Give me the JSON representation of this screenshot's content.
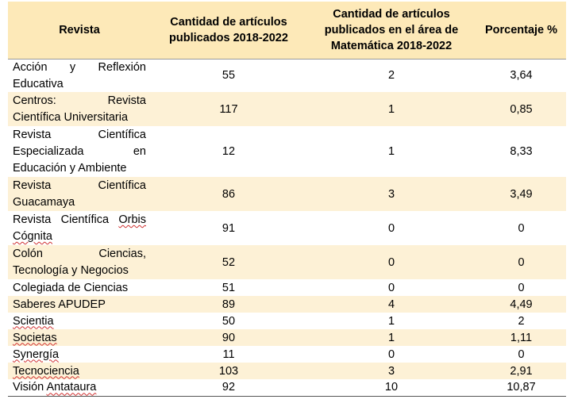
{
  "headers": {
    "revista": "Revista",
    "cantidad": "Cantidad de artículos publicados 2018-2022",
    "matematica": "Cantidad de artículos publicados en el área de Matemática 2018-2022",
    "porcentaje": "Porcentaje %"
  },
  "rows": [
    {
      "name": "Acción y Reflexión Educativa",
      "total": "55",
      "math": "2",
      "pct": "3,64"
    },
    {
      "name": "Centros: Revista Científica Universitaria",
      "total": "117",
      "math": "1",
      "pct": "0,85"
    },
    {
      "name": "Revista Científica Especializada en Educación y Ambiente",
      "total": "12",
      "math": "1",
      "pct": "8,33"
    },
    {
      "name": "Revista Científica Guacamaya",
      "total": "86",
      "math": "3",
      "pct": "3,49"
    },
    {
      "name": "Revista Científica Orbis Cógnita",
      "total": "91",
      "math": "0",
      "pct": "0"
    },
    {
      "name": "Colón Ciencias, Tecnología y Negocios",
      "total": "52",
      "math": "0",
      "pct": "0"
    },
    {
      "name": "Colegiada de Ciencias",
      "total": "51",
      "math": "0",
      "pct": "0"
    },
    {
      "name": "Saberes APUDEP",
      "total": "89",
      "math": "4",
      "pct": "4,49"
    },
    {
      "name": "Scientia",
      "total": "50",
      "math": "1",
      "pct": "2"
    },
    {
      "name": "Societas",
      "total": "90",
      "math": "1",
      "pct": "1,11"
    },
    {
      "name": "Synergía",
      "total": "11",
      "math": "0",
      "pct": "0"
    },
    {
      "name": "Tecnociencia",
      "total": "103",
      "math": "3",
      "pct": "2,91"
    },
    {
      "name": "Visión Antataura",
      "total": "92",
      "math": "10",
      "pct": "10,87"
    }
  ]
}
